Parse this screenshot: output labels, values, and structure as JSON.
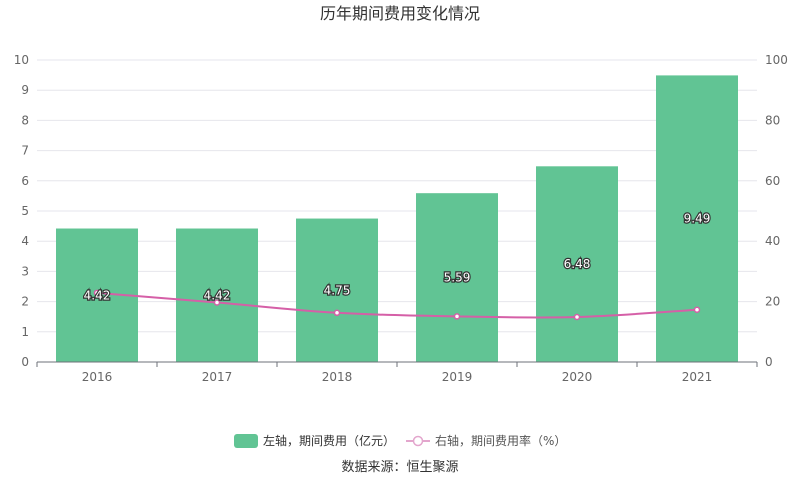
{
  "chart_data": {
    "type": "bar",
    "title": "历年期间费用变化情况",
    "categories": [
      "2016",
      "2017",
      "2018",
      "2019",
      "2020",
      "2021"
    ],
    "series": [
      {
        "name": "左轴，期间费用（亿元）",
        "type": "bar",
        "axis": "left",
        "color": "#61c494",
        "values": [
          4.42,
          4.42,
          4.75,
          5.59,
          6.48,
          9.49
        ],
        "labels": [
          "4.42",
          "4.42",
          "4.75",
          "5.59",
          "6.48",
          "9.49"
        ]
      },
      {
        "name": "右轴，期间费用率（%）",
        "type": "line",
        "axis": "right",
        "color": "#d55fa7",
        "values": [
          22.9,
          19.7,
          16.3,
          15.1,
          14.9,
          17.3
        ]
      }
    ],
    "y_left": {
      "min": 0,
      "max": 10,
      "ticks": [
        "0",
        "1",
        "2",
        "3",
        "4",
        "5",
        "6",
        "7",
        "8",
        "9",
        "10"
      ]
    },
    "y_right": {
      "min": 0,
      "max": 100,
      "ticks": [
        "0",
        "20",
        "40",
        "60",
        "80",
        "100"
      ]
    },
    "grid": true,
    "legend_position": "bottom"
  },
  "source_text": "数据来源：恒生聚源"
}
